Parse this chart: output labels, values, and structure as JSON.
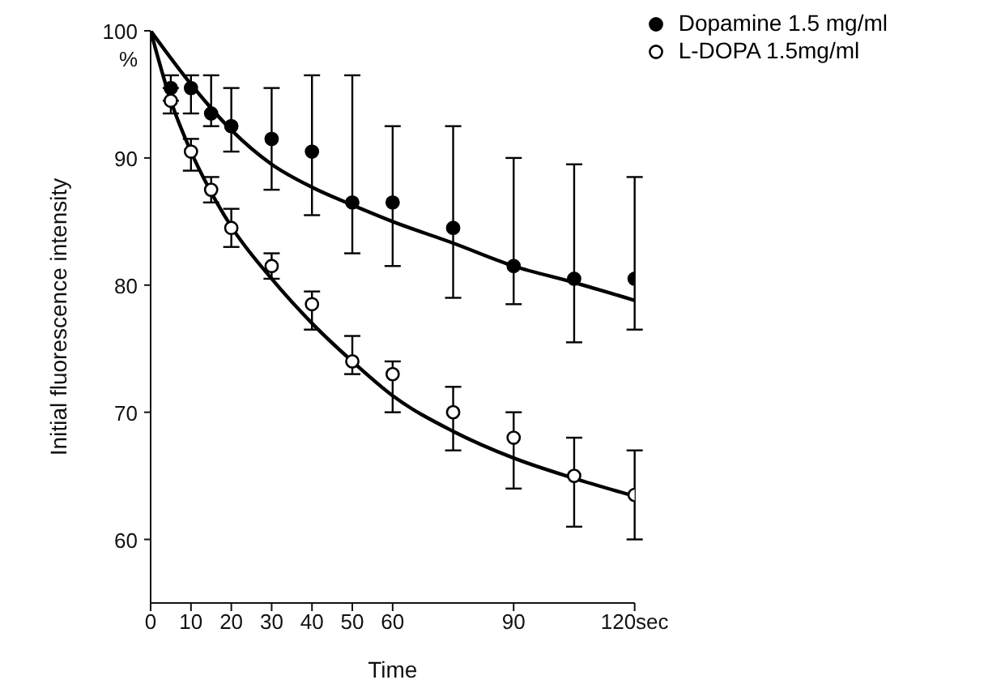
{
  "chart_data": {
    "type": "scatter",
    "xlabel": "Time",
    "ylabel": "Initial fluorescence intensity",
    "xlim": [
      0,
      120
    ],
    "ylim": [
      55,
      100
    ],
    "xticks": [
      0,
      10,
      20,
      30,
      40,
      50,
      60,
      90,
      {
        "value": 120,
        "label": "120sec"
      }
    ],
    "yticks": [
      60,
      70,
      80,
      90,
      {
        "value": 100,
        "label": "100\n%"
      }
    ],
    "grid": false,
    "legend": "top right",
    "marker": "circle",
    "series": [
      {
        "name": "Dopamine 1.5 mg/ml",
        "color": "#000000",
        "x": [
          5,
          10,
          15,
          20,
          30,
          40,
          50,
          60,
          75,
          90,
          105,
          120
        ],
        "values": [
          95.5,
          95.5,
          93.5,
          92.5,
          91.5,
          90.5,
          86.5,
          86.5,
          84.5,
          81.5,
          80.5,
          80.5
        ],
        "errors": [
          [
            94.5,
            96.5
          ],
          [
            93.5,
            96.5
          ],
          [
            92.5,
            96.5
          ],
          [
            90.5,
            95.5
          ],
          [
            87.5,
            95.5
          ],
          [
            85.5,
            96.5
          ],
          [
            82.5,
            96.5
          ],
          [
            81.5,
            92.5
          ],
          [
            79,
            92.5
          ],
          [
            78.5,
            90
          ],
          [
            75.5,
            89.5
          ],
          [
            76.5,
            88.5
          ]
        ]
      },
      {
        "name": "L-DOPA 1.5mg/ml",
        "color": "#000000",
        "x": [
          5,
          10,
          15,
          20,
          30,
          40,
          50,
          60,
          75,
          90,
          105,
          120
        ],
        "values": [
          94.5,
          90.5,
          87.5,
          84.5,
          81.5,
          78.5,
          74,
          73,
          70,
          68,
          65,
          63.5
        ],
        "errors": [
          [
            93.5,
            95.5
          ],
          [
            89,
            91.5
          ],
          [
            86.5,
            88.5
          ],
          [
            83,
            86
          ],
          [
            80.5,
            82.5
          ],
          [
            76.5,
            79.5
          ],
          [
            73,
            76
          ],
          [
            70,
            74
          ],
          [
            67,
            72
          ],
          [
            64,
            70
          ],
          [
            61,
            68
          ],
          [
            60,
            67
          ]
        ]
      },
      {
        "type": "line",
        "marker": "none",
        "color": "#000000",
        "x": [
          0,
          10,
          20,
          30,
          40,
          50,
          60,
          75,
          90,
          105,
          120
        ],
        "values": [
          100,
          95.8,
          92.2,
          89.5,
          87.7,
          86.3,
          85,
          83.3,
          81.5,
          80.2,
          78.8
        ]
      },
      {
        "type": "line",
        "marker": "none",
        "color": "#000000",
        "x": [
          0,
          5,
          10,
          15,
          20,
          30,
          40,
          50,
          60,
          75,
          90,
          105,
          120
        ],
        "values": [
          100,
          94.5,
          90.5,
          87.3,
          84.6,
          80.5,
          77,
          74,
          71.3,
          68.5,
          66.4,
          64.8,
          63.4
        ]
      }
    ]
  }
}
